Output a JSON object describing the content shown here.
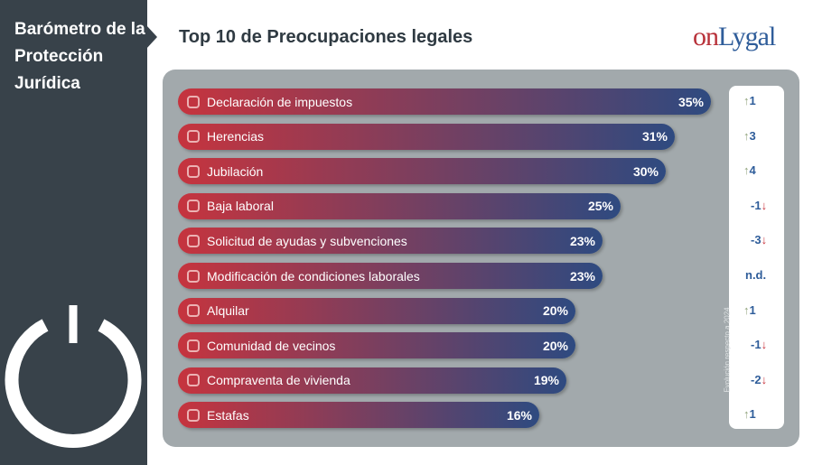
{
  "sidebar": {
    "title": "Barómetro de la Protección Jurídica"
  },
  "header": {
    "title": "Top 10 de Preocupaciones legales",
    "logo_on": "on",
    "logo_rest": "Lygal"
  },
  "evolution_label": "Evolución respecto a 2024",
  "colors": {
    "bar_start": "#c6343e",
    "bar_end": "#2e4a80",
    "up": "#8fa27a",
    "down": "#c9343e",
    "sidebar": "#38424a"
  },
  "chart_data": {
    "type": "bar",
    "orientation": "horizontal",
    "title": "Top 10 de Preocupaciones legales",
    "categories": [
      "Declaración de impuestos",
      "Herencias",
      "Jubilación",
      "Baja laboral",
      "Solicitud de ayudas y subvenciones",
      "Modificación de condiciones laborales",
      "Alquilar",
      "Comunidad de vecinos",
      "Compraventa de vivienda",
      "Estafas"
    ],
    "values": [
      35,
      31,
      30,
      25,
      23,
      23,
      20,
      20,
      19,
      16
    ],
    "labels": [
      "35%",
      "31%",
      "30%",
      "25%",
      "23%",
      "23%",
      "20%",
      "20%",
      "19%",
      "16%"
    ],
    "evolution": [
      {
        "text": "1",
        "dir": "up"
      },
      {
        "text": "3",
        "dir": "up"
      },
      {
        "text": "4",
        "dir": "up"
      },
      {
        "text": "-1",
        "dir": "down"
      },
      {
        "text": "-3",
        "dir": "down"
      },
      {
        "text": "n.d.",
        "dir": "none"
      },
      {
        "text": "1",
        "dir": "up"
      },
      {
        "text": "-1",
        "dir": "down"
      },
      {
        "text": "-2",
        "dir": "down"
      },
      {
        "text": "1",
        "dir": "up"
      }
    ],
    "icons": [
      "tax-form-icon",
      "inheritance-icon",
      "retirement-icon",
      "sick-leave-icon",
      "grants-icon",
      "work-conditions-icon",
      "rent-icon",
      "neighbors-icon",
      "house-sale-icon",
      "fraud-icon"
    ]
  }
}
